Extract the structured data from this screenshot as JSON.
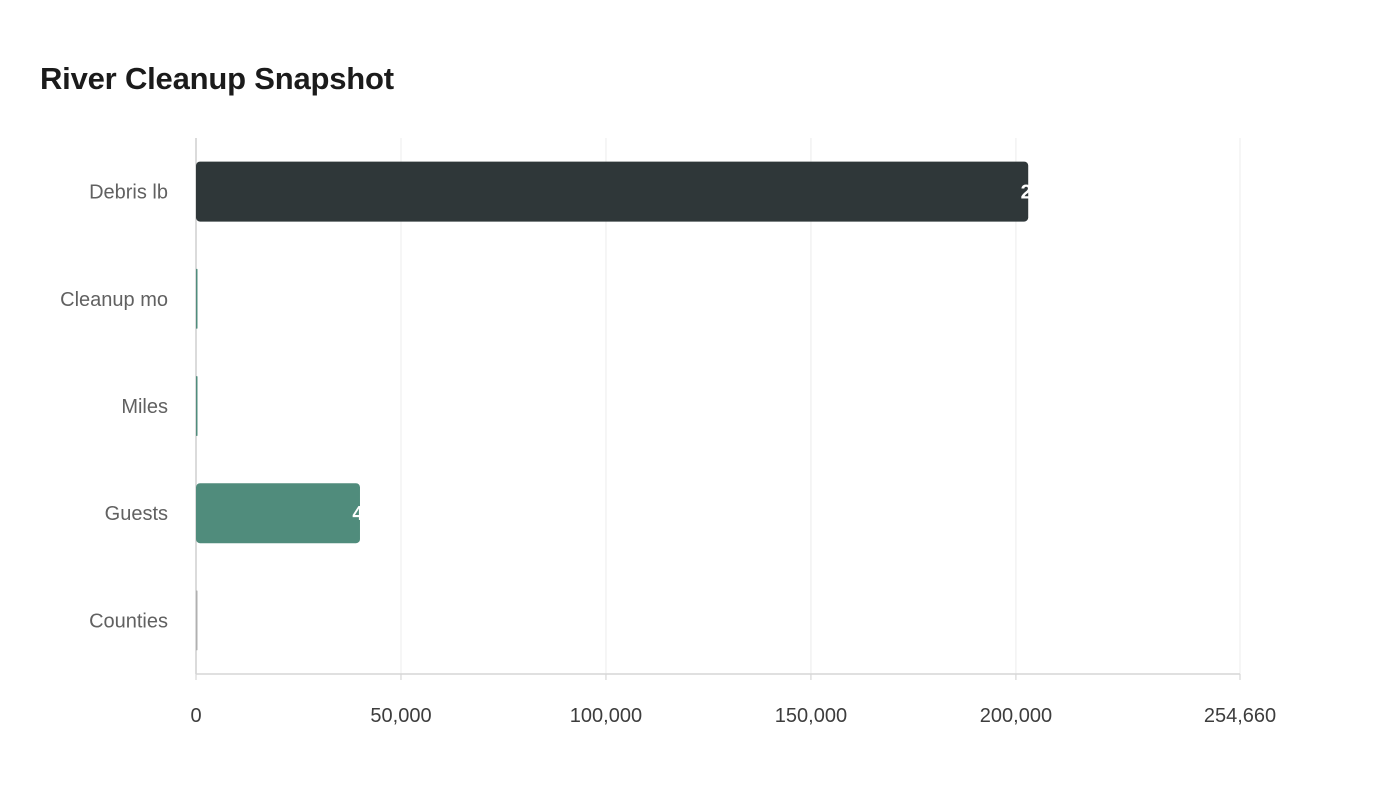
{
  "chart_data": {
    "type": "bar",
    "orientation": "horizontal",
    "title": "River Cleanup Snapshot",
    "categories": [
      "Debris lb",
      "Cleanup mo",
      "Miles",
      "Guests",
      "Counties"
    ],
    "values": [
      203000,
      120,
      48,
      40000,
      14
    ],
    "colors": [
      "#2f3739",
      "#508c7c",
      "#508c7c",
      "#508c7c",
      "#b0b0b0"
    ],
    "xlim": [
      0,
      254660
    ],
    "xticks": [
      0,
      50000,
      100000,
      150000,
      200000,
      254660
    ],
    "xtick_labels": [
      "0",
      "50,000",
      "100,000",
      "150,000",
      "200,000",
      "254,660"
    ],
    "value_labels_visible": [
      "2",
      "",
      "",
      "4",
      ""
    ],
    "grid": "vertical",
    "legend": "none"
  }
}
